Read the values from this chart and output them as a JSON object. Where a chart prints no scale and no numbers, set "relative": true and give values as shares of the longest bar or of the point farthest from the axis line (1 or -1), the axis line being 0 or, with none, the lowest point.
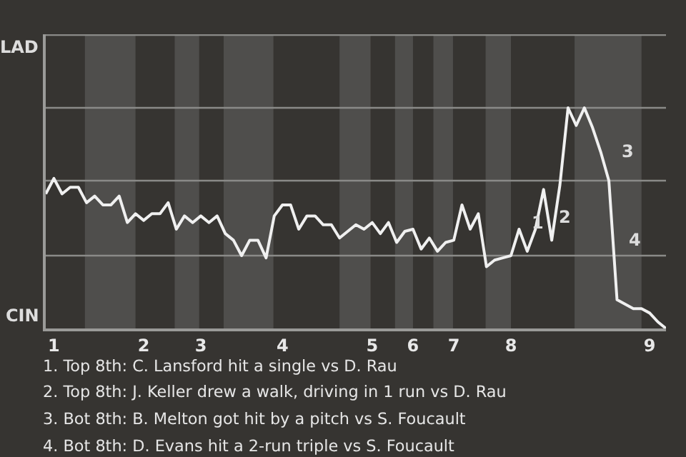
{
  "chart_data": {
    "type": "line",
    "relative": true,
    "categories": [
      null,
      "1",
      null,
      null,
      null,
      null,
      null,
      null,
      null,
      null,
      null,
      null,
      "2",
      null,
      null,
      null,
      null,
      null,
      null,
      "3",
      null,
      null,
      null,
      null,
      null,
      null,
      null,
      null,
      null,
      "4",
      null,
      null,
      null,
      null,
      null,
      null,
      null,
      null,
      null,
      null,
      "5",
      null,
      null,
      null,
      null,
      "6",
      null,
      null,
      null,
      null,
      "7",
      null,
      null,
      null,
      null,
      null,
      null,
      "8",
      null,
      null,
      null,
      null,
      null,
      null,
      null,
      null,
      null,
      null,
      null,
      null,
      null,
      null,
      null,
      null,
      "9",
      null,
      null
    ],
    "marker": "none",
    "line_style": "solid",
    "series": [
      {
        "color": "#f0f0f0",
        "values": [
          0.61,
          0.68,
          0.61,
          0.64,
          0.64,
          0.57,
          0.6,
          0.56,
          0.56,
          0.6,
          0.48,
          0.52,
          0.49,
          0.52,
          0.52,
          0.57,
          0.45,
          0.51,
          0.48,
          0.51,
          0.48,
          0.51,
          0.43,
          0.4,
          0.33,
          0.4,
          0.4,
          0.32,
          0.51,
          0.56,
          0.56,
          0.45,
          0.51,
          0.51,
          0.47,
          0.47,
          0.41,
          0.44,
          0.47,
          0.45,
          0.48,
          0.43,
          0.48,
          0.39,
          0.44,
          0.45,
          0.36,
          0.41,
          0.35,
          0.39,
          0.4,
          0.56,
          0.45,
          0.52,
          0.28,
          0.31,
          0.32,
          0.33,
          0.45,
          0.35,
          0.45,
          0.63,
          0.4,
          0.65,
          1,
          0.92,
          1,
          0.91,
          0.8,
          0.67,
          0.13,
          0.11,
          0.09,
          0.09,
          0.07,
          0.03,
          0
        ]
      }
    ],
    "ref_lines": [
      {
        "axis": "y",
        "value": 0.33,
        "color": "#8a8a88"
      },
      {
        "axis": "y",
        "value": 0.67,
        "color": "#8a8a88"
      },
      {
        "axis": "y",
        "value": 1,
        "color": "#8a8a88"
      },
      {
        "axis": "y",
        "value": 1.33,
        "color": "#8a8a88"
      }
    ],
    "annotations": [
      "LAD",
      "CIN",
      "1",
      "2",
      "3",
      "4",
      "1. Top 8th: C. Lansford hit a single vs D. Rau",
      "2. Top 8th: J. Keller drew a walk, driving in 1 run vs D. Rau",
      "3. Bot 8th: B. Melton got hit by a pitch vs S. Foucault",
      "4. Bot 8th: D. Evans hit a 2-run triple vs S. Foucault"
    ]
  }
}
